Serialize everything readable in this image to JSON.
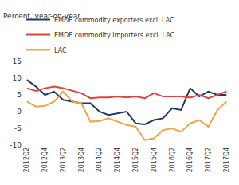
{
  "chart_data": {
    "type": "line",
    "ylabel": "Percent, year-on-year",
    "categories": [
      "2012Q2",
      null,
      "2012Q4",
      null,
      "2013Q2",
      null,
      "2013Q4",
      null,
      "2014Q2",
      null,
      "2014Q4",
      null,
      "2015Q2",
      null,
      "2015Q4",
      null,
      "2016Q2",
      null,
      "2016Q4",
      null,
      "2017Q2",
      null,
      "2017Q4"
    ],
    "series": [
      {
        "name": "EMDE commodity exporters excl. LAC",
        "color": "#1f3a68",
        "values": [
          9.5,
          7.5,
          5,
          6,
          3.5,
          3,
          2.5,
          2.5,
          0,
          -1,
          -0.5,
          0,
          -3.5,
          -3.8,
          -2.5,
          -2,
          1,
          0.5,
          7,
          4.5,
          6,
          5,
          5
        ]
      },
      {
        "name": "EMDE commodity importers excl. LAC",
        "color": "#e8413a",
        "values": [
          7,
          6.2,
          7,
          7.5,
          7,
          6.2,
          5.5,
          4,
          4.2,
          4.2,
          4.5,
          4.2,
          4.5,
          4,
          5.5,
          4.5,
          4.5,
          4.5,
          4.2,
          5,
          4,
          5,
          6
        ]
      },
      {
        "name": "LAC",
        "color": "#f5a443",
        "values": [
          3,
          1.5,
          1.7,
          3,
          6,
          3,
          2.5,
          -3,
          -2.8,
          -2,
          -3,
          -4,
          -4.5,
          -8.5,
          -8,
          -5.5,
          -5,
          -6,
          -3.5,
          -2.5,
          -4.5,
          0.5,
          3
        ]
      }
    ],
    "ylim": [
      -10,
      15
    ],
    "yticks": [
      -10,
      -5,
      0,
      5,
      10,
      15
    ],
    "grid": false,
    "legend": "top"
  }
}
